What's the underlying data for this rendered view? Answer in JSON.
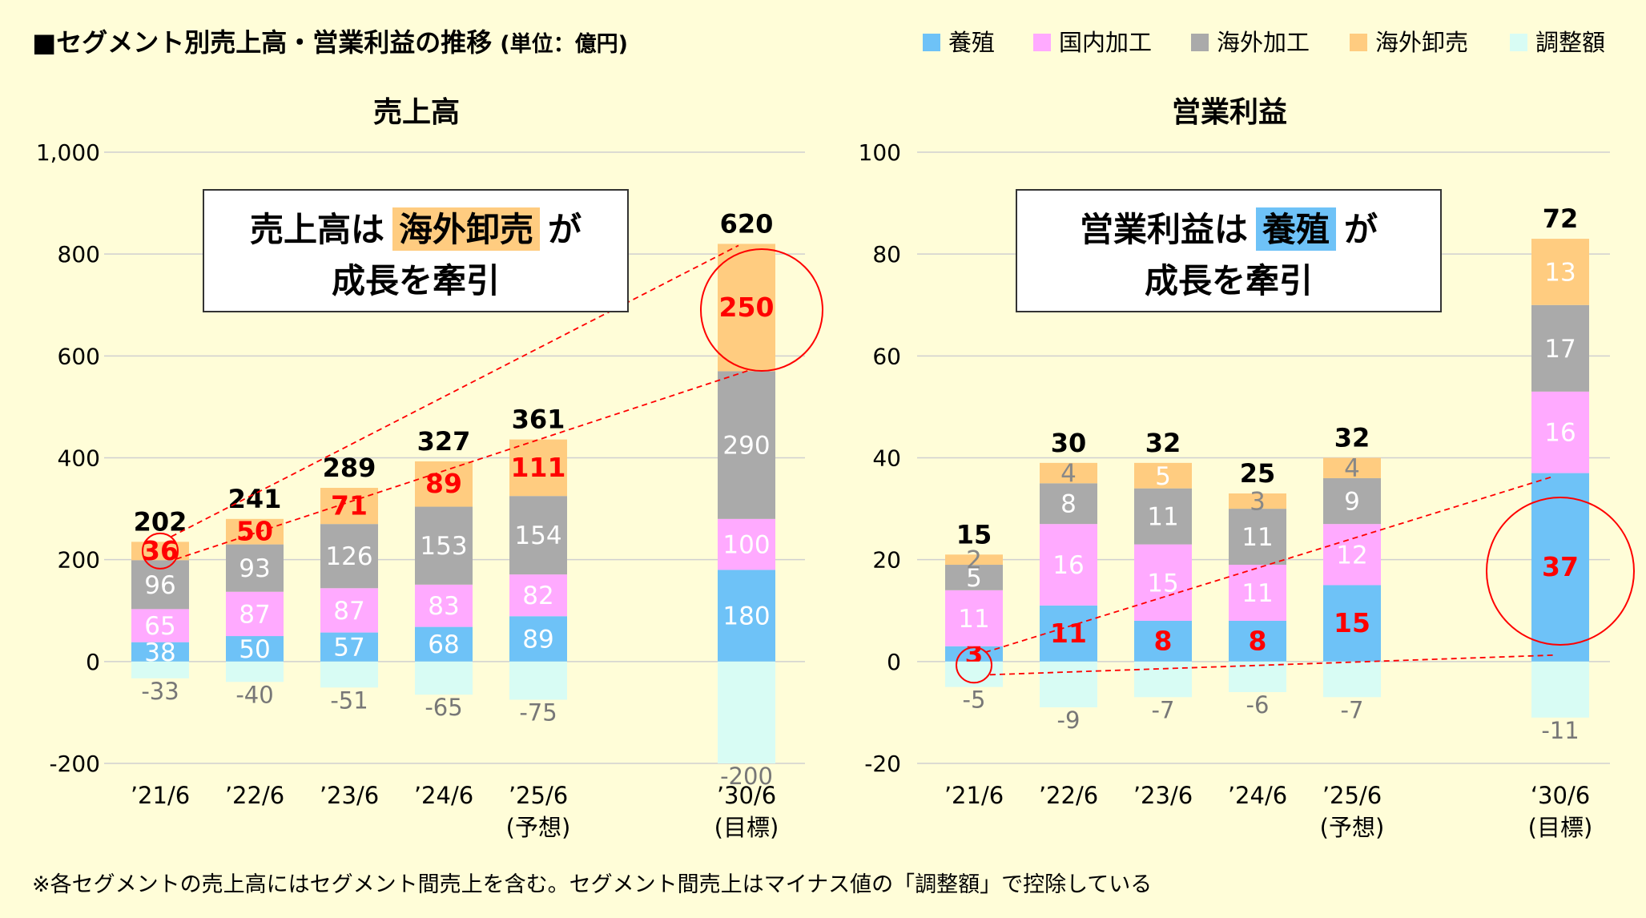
{
  "title": "■セグメント別売上高・営業利益の推移",
  "unit": "(単位：億円)",
  "footnote": "※各セグメントの売上高にはセグメント間売上を含む。セグメント間売上はマイナス値の「調整額」で控除している",
  "legend": [
    {
      "name": "養殖",
      "color": "#6ec2f7"
    },
    {
      "name": "国内加工",
      "color": "#ffaaff"
    },
    {
      "name": "海外加工",
      "color": "#aaaaaa"
    },
    {
      "name": "海外卸売",
      "color": "#ffcc80"
    },
    {
      "name": "調整額",
      "color": "#d8fcf4"
    }
  ],
  "chart_data": [
    {
      "type": "bar",
      "stacked": true,
      "title": "売上高",
      "categories": [
        "’21/6",
        "’22/6",
        "’23/6",
        "’24/6",
        "’25/6",
        "’30/6"
      ],
      "category_sublabels": [
        "",
        "",
        "",
        "",
        "(予想)",
        "(目標)"
      ],
      "series": [
        {
          "name": "養殖",
          "values": [
            38,
            50,
            57,
            68,
            89,
            180
          ]
        },
        {
          "name": "国内加工",
          "values": [
            65,
            87,
            87,
            83,
            82,
            100
          ]
        },
        {
          "name": "海外加工",
          "values": [
            96,
            93,
            126,
            153,
            154,
            290
          ]
        },
        {
          "name": "海外卸売",
          "values": [
            36,
            50,
            71,
            89,
            111,
            250
          ]
        },
        {
          "name": "調整額",
          "values": [
            -33,
            -40,
            -51,
            -65,
            -75,
            -200
          ]
        }
      ],
      "totals": [
        202,
        241,
        289,
        327,
        361,
        620
      ],
      "highlight_series": "海外卸売",
      "ylim": [
        -200,
        1000
      ],
      "yticks": [
        -200,
        0,
        200,
        400,
        600,
        800,
        1000
      ],
      "ytick_labels": [
        "-200",
        "0",
        "200",
        "400",
        "600",
        "800",
        "1,000"
      ],
      "callout": {
        "prefix": "売上高は",
        "highlight": "海外卸売",
        "suffix": "が",
        "line2": "成長を牽引"
      }
    },
    {
      "type": "bar",
      "stacked": true,
      "title": "営業利益",
      "categories": [
        "’21/6",
        "’22/6",
        "’23/6",
        "’24/6",
        "’25/6",
        "‘30/6"
      ],
      "category_sublabels": [
        "",
        "",
        "",
        "",
        "(予想)",
        "(目標)"
      ],
      "series": [
        {
          "name": "養殖",
          "values": [
            3,
            11,
            8,
            8,
            15,
            37
          ]
        },
        {
          "name": "国内加工",
          "values": [
            11,
            16,
            15,
            11,
            12,
            16
          ]
        },
        {
          "name": "海外加工",
          "values": [
            5,
            8,
            11,
            11,
            9,
            17
          ]
        },
        {
          "name": "海外卸売",
          "values": [
            2,
            4,
            5,
            3,
            4,
            13
          ]
        },
        {
          "name": "調整額",
          "values": [
            -5,
            -9,
            -7,
            -6,
            -7,
            -11
          ]
        }
      ],
      "totals": [
        15,
        30,
        32,
        25,
        32,
        72
      ],
      "highlight_series": "養殖",
      "ylim": [
        -20,
        100
      ],
      "yticks": [
        -20,
        0,
        20,
        40,
        60,
        80,
        100
      ],
      "ytick_labels": [
        "-20",
        "0",
        "20",
        "40",
        "60",
        "80",
        "100"
      ],
      "callout": {
        "prefix": "営業利益は",
        "highlight": "養殖",
        "suffix": "が",
        "line2": "成長を牽引"
      }
    }
  ]
}
